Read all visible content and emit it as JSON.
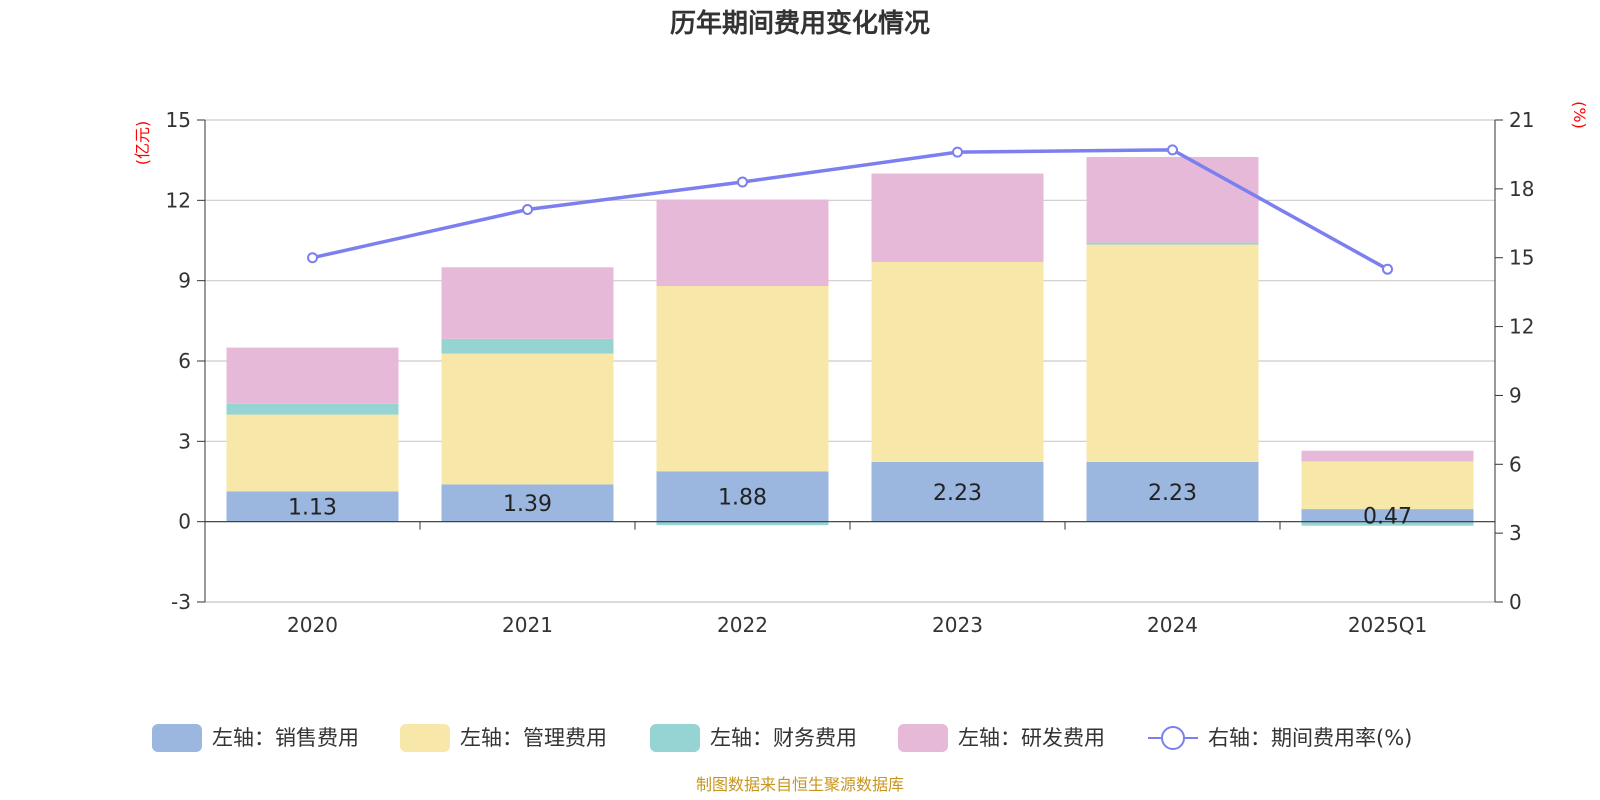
{
  "colors": {
    "sales": "#9bb7e0",
    "admin": "#f7e7a8",
    "finance": "#96d3d3",
    "rnd": "#e7b9d8",
    "rate": "#7b7fef",
    "axis_unit": "#ff0000",
    "source": "#c8961e"
  },
  "chart_data": {
    "type": "bar",
    "title": "历年期间费用变化情况",
    "categories": [
      "2020",
      "2021",
      "2022",
      "2023",
      "2024",
      "2025Q1"
    ],
    "left_axis": {
      "unit": "(亿元)",
      "ylim": [
        -3,
        15
      ],
      "ticks": [
        "-3",
        "0",
        "3",
        "6",
        "9",
        "12",
        "15"
      ]
    },
    "right_axis": {
      "unit": "(%)",
      "ylim": [
        0,
        21
      ],
      "ticks": [
        "0",
        "3",
        "6",
        "9",
        "12",
        "15",
        "18",
        "21"
      ]
    },
    "series": [
      {
        "name": "左轴：销售费用",
        "key": "sales",
        "values": [
          1.13,
          1.39,
          1.88,
          2.23,
          2.23,
          0.47
        ],
        "labels": [
          "1.13",
          "1.39",
          "1.88",
          "2.23",
          "2.23",
          "0.47"
        ]
      },
      {
        "name": "左轴：管理费用",
        "key": "admin",
        "values": [
          2.87,
          4.89,
          6.92,
          7.47,
          8.12,
          1.78
        ]
      },
      {
        "name": "左轴：财务费用",
        "key": "finance",
        "values": [
          0.4,
          0.55,
          -0.13,
          0.0,
          0.07,
          -0.15
        ]
      },
      {
        "name": "左轴：研发费用",
        "key": "rnd",
        "values": [
          2.1,
          2.67,
          3.23,
          3.3,
          3.2,
          0.4
        ]
      }
    ],
    "line_series": {
      "name": "右轴：期间费用率(%)",
      "key": "rate",
      "values": [
        15.0,
        17.1,
        18.3,
        19.6,
        19.7,
        14.5
      ]
    },
    "grid": true,
    "legend": "bottom"
  },
  "source_text": "制图数据来自恒生聚源数据库"
}
